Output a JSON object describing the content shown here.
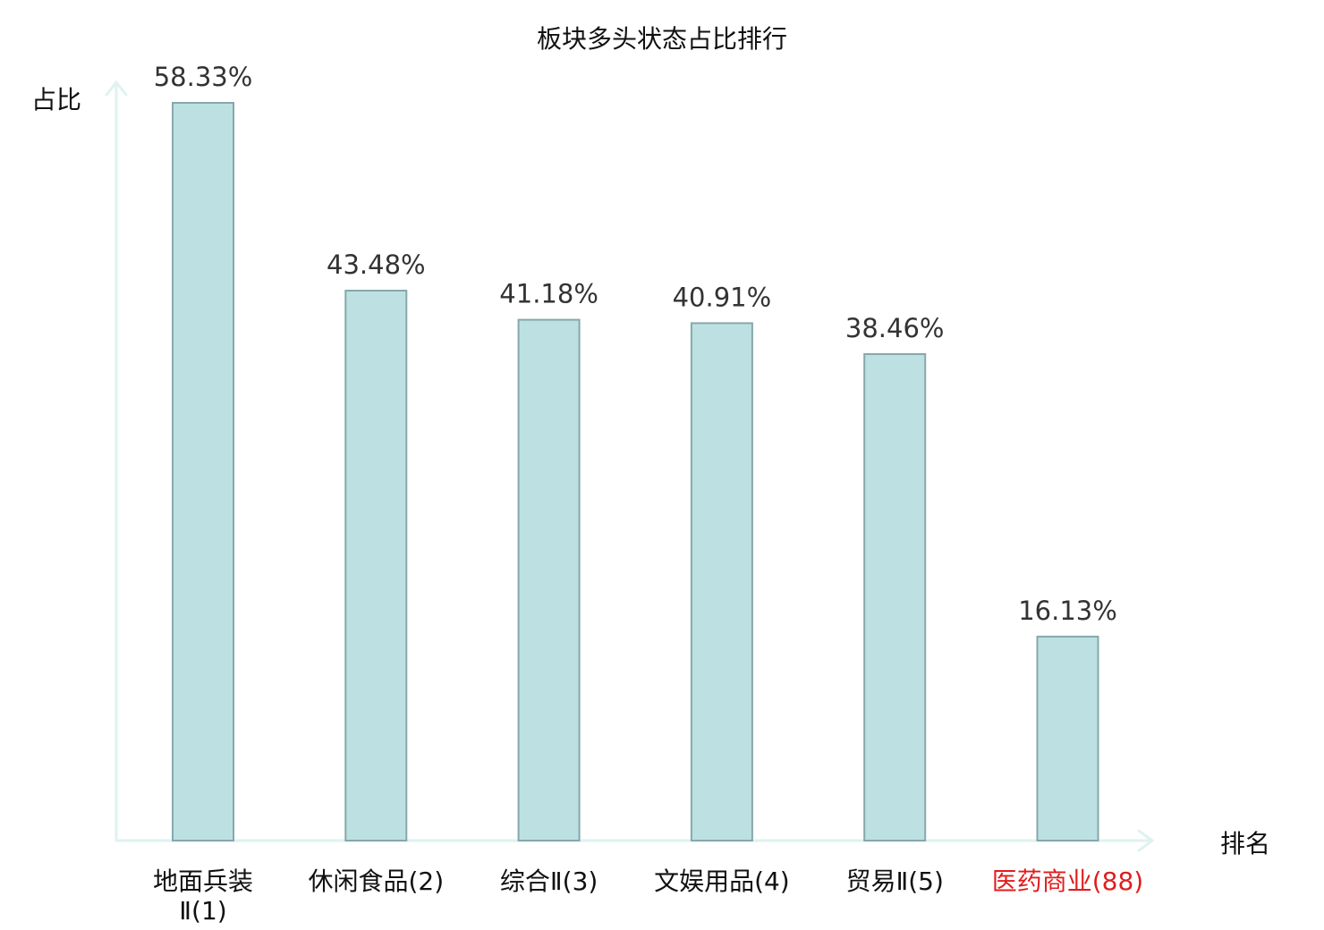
{
  "chart_data": {
    "type": "bar",
    "title": "板块多头状态占比排行",
    "ylabel": "占比",
    "xlabel": "排名",
    "categories": [
      "地面兵装Ⅱ(1)",
      "休闲食品(2)",
      "综合Ⅱ(3)",
      "文娱用品(4)",
      "贸易Ⅱ(5)",
      "医药商业(88)"
    ],
    "category_lines": [
      [
        "地面兵装",
        "Ⅱ(1)"
      ],
      [
        "休闲食品(2)"
      ],
      [
        "综合Ⅱ(3)"
      ],
      [
        "文娱用品(4)"
      ],
      [
        "贸易Ⅱ(5)"
      ],
      [
        "医药商业(88)"
      ]
    ],
    "values": [
      58.33,
      43.48,
      41.18,
      40.91,
      38.46,
      16.13
    ],
    "value_labels": [
      "58.33%",
      "43.48%",
      "41.18%",
      "40.91%",
      "38.46%",
      "16.13%"
    ],
    "unit": "%",
    "ylim": [
      0,
      60
    ],
    "grid": false,
    "legend": "none",
    "highlight_index": 5,
    "colors": {
      "bar_fill": "#bde1e3",
      "bar_stroke": "#86a8ab",
      "axis": "#dff2ef",
      "highlight_text": "#e11d1d",
      "text": "#111111",
      "value_text": "#333333"
    }
  }
}
